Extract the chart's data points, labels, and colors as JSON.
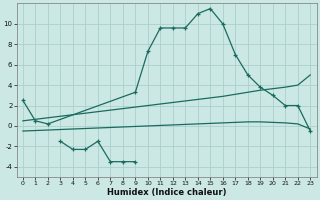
{
  "xlabel": "Humidex (Indice chaleur)",
  "background_color": "#cce8e4",
  "grid_color": "#aacfcc",
  "line_color": "#1a6b5e",
  "x_values": [
    0,
    1,
    2,
    3,
    4,
    5,
    6,
    7,
    8,
    9,
    10,
    11,
    12,
    13,
    14,
    15,
    16,
    17,
    18,
    19,
    20,
    21,
    22,
    23
  ],
  "line_main": [
    2.5,
    0.5,
    0.2,
    null,
    null,
    null,
    null,
    null,
    null,
    3.3,
    7.3,
    9.6,
    9.6,
    9.6,
    11.0,
    11.5,
    10.0,
    7.0,
    5.0,
    3.8,
    3.0,
    2.0,
    2.0,
    -0.5
  ],
  "line_low": [
    null,
    null,
    null,
    -1.5,
    -2.3,
    -2.3,
    -1.5,
    -3.5,
    -3.5,
    -3.5,
    null,
    null,
    null,
    null,
    null,
    null,
    null,
    null,
    null,
    null,
    null,
    null,
    null,
    null
  ],
  "trend_upper": [
    0.5,
    0.65,
    0.8,
    0.95,
    1.1,
    1.25,
    1.4,
    1.55,
    1.7,
    1.85,
    2.0,
    2.15,
    2.3,
    2.45,
    2.6,
    2.75,
    2.9,
    3.1,
    3.3,
    3.5,
    3.65,
    3.8,
    4.0,
    5.0
  ],
  "trend_lower": [
    -0.5,
    -0.45,
    -0.4,
    -0.35,
    -0.3,
    -0.25,
    -0.2,
    -0.15,
    -0.1,
    -0.05,
    0.0,
    0.05,
    0.1,
    0.15,
    0.2,
    0.25,
    0.3,
    0.35,
    0.4,
    0.4,
    0.35,
    0.3,
    0.2,
    -0.3
  ],
  "ylim": [
    -5,
    12
  ],
  "xlim": [
    -0.5,
    23.5
  ],
  "yticks": [
    -4,
    -2,
    0,
    2,
    4,
    6,
    8,
    10
  ],
  "xticks": [
    0,
    1,
    2,
    3,
    4,
    5,
    6,
    7,
    8,
    9,
    10,
    11,
    12,
    13,
    14,
    15,
    16,
    17,
    18,
    19,
    20,
    21,
    22,
    23
  ]
}
